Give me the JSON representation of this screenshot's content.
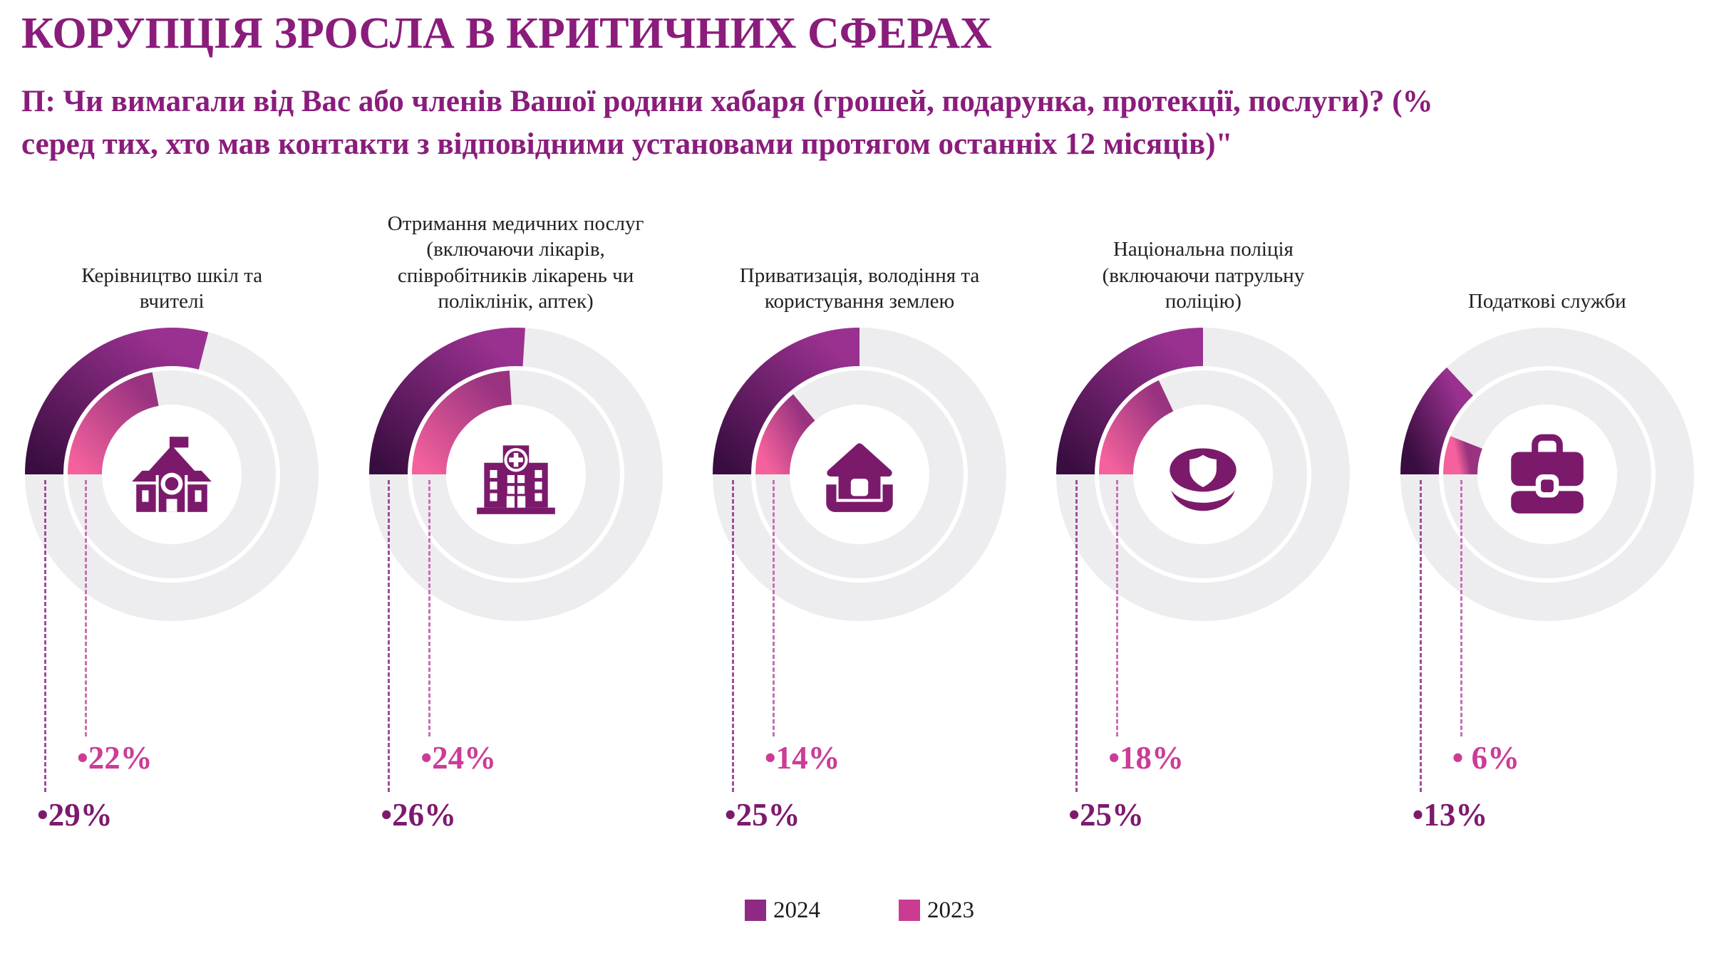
{
  "title": "КОРУПЦІЯ ЗРОСЛА В КРИТИЧНИХ СФЕРАХ",
  "subtitle": {
    "line1": "П: Чи вимагали від Вас або членів Вашої родини хабаря (грошей, подарунка, протекції, послуги)? (%",
    "line2": "серед тих, хто мав контакти з відповідними установами протягом останніх 12 місяців)\""
  },
  "legend": [
    {
      "label": "2024",
      "color": "#8E2A84"
    },
    {
      "label": "2023",
      "color": "#C93C92"
    }
  ],
  "colors": {
    "title": "#8A1C7C",
    "label_text": "#212121",
    "track": "#EDEDEF",
    "icon": "#7B1A6B",
    "series_2024_start": "#380D3F",
    "series_2024_end": "#9A3190",
    "series_2023_start": "#F4619C",
    "series_2023_end": "#993380",
    "value_2024_text": "#7C1B6E",
    "value_2023_text": "#CC3C96",
    "dash_2024": "#A04E98",
    "dash_2023": "#C86FB0"
  },
  "chart_data": {
    "type": "pie",
    "variant": "five concentric double-donut gauges; arcs start at 9 o'clock and sweep clockwise; outer ring = 2024, inner ring = 2023",
    "categories": [
      "Керівництво шкіл та вчителі",
      "Отримання медичних послуг (включаючи лікарів, співробітників лікарень чи поліклінік, аптек)",
      "Приватизація, володіння та користування землею",
      "Національна поліція (включаючи патрульну поліцію)",
      "Податкові служби"
    ],
    "series": [
      {
        "name": "2024",
        "values": [
          29,
          26,
          25,
          25,
          13
        ]
      },
      {
        "name": "2023",
        "values": [
          22,
          24,
          14,
          18,
          6
        ]
      }
    ],
    "unit": "%",
    "legend_position": "bottom-center",
    "grid": false
  },
  "charts": [
    {
      "label": "Керівництво шкіл та вчителі",
      "icon": "school-icon",
      "value_2024": 29,
      "value_2023": 22,
      "display_2024": "•29%",
      "display_2023": "•22%"
    },
    {
      "label": "Отримання медичних послуг (включаючи лікарів, співробітників лікарень чи поліклінік, аптек)",
      "icon": "hospital-icon",
      "value_2024": 26,
      "value_2023": 24,
      "display_2024": "•26%",
      "display_2023": "•24%"
    },
    {
      "label": "Приватизація, володіння та користування землею",
      "icon": "house-land-icon",
      "value_2024": 25,
      "value_2023": 14,
      "display_2024": "•25%",
      "display_2023": "•14%"
    },
    {
      "label": "Національна поліція (включаючи патрульну поліцію)",
      "icon": "police-cap-icon",
      "value_2024": 25,
      "value_2023": 18,
      "display_2024": "•25%",
      "display_2023": "•18%"
    },
    {
      "label": "Податкові служби",
      "icon": "briefcase-icon",
      "value_2024": 13,
      "value_2023": 6,
      "display_2024": "•13%",
      "display_2023": "• 6%"
    }
  ]
}
